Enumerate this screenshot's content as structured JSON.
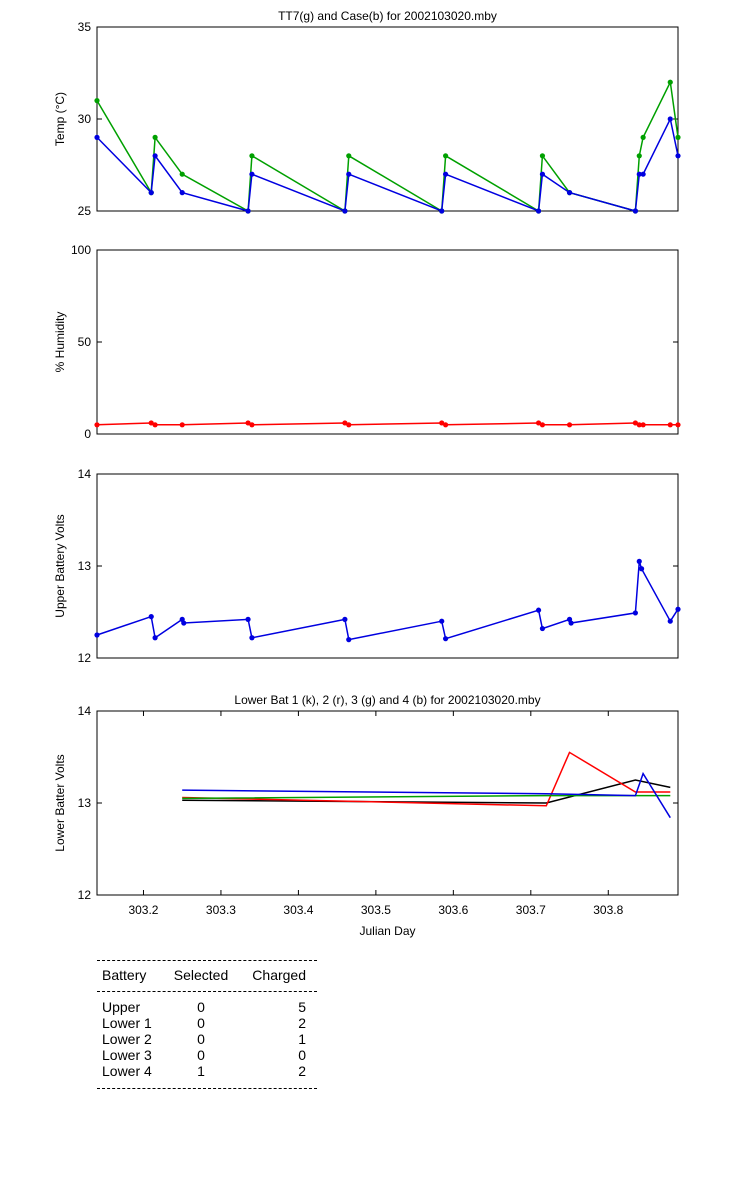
{
  "chart_data": [
    {
      "type": "line",
      "title": "TT7(g) and Case(b) for 2002103020.mby",
      "ylabel": "Temp  (°C)",
      "xlim": [
        303.14,
        303.89
      ],
      "ylim": [
        25,
        35
      ],
      "yticks": [
        25,
        30,
        35
      ],
      "markers": true,
      "series": [
        {
          "color": "#00a000",
          "x": [
            303.14,
            303.21,
            303.215,
            303.25,
            303.335,
            303.34,
            303.46,
            303.465,
            303.585,
            303.59,
            303.71,
            303.715,
            303.75,
            303.835,
            303.84,
            303.845,
            303.88,
            303.89
          ],
          "y": [
            31,
            26,
            29,
            27,
            25,
            28,
            25,
            28,
            25,
            28,
            25,
            28,
            26,
            25,
            28,
            29,
            32,
            29
          ]
        },
        {
          "color": "#0000e0",
          "x": [
            303.14,
            303.21,
            303.215,
            303.25,
            303.335,
            303.34,
            303.46,
            303.465,
            303.585,
            303.59,
            303.71,
            303.715,
            303.75,
            303.835,
            303.84,
            303.845,
            303.88,
            303.89
          ],
          "y": [
            29,
            26,
            28,
            26,
            25,
            27,
            25,
            27,
            25,
            27,
            25,
            27,
            26,
            25,
            27,
            27,
            30,
            28
          ]
        }
      ]
    },
    {
      "type": "line",
      "ylabel": "% Humidity",
      "xlim": [
        303.14,
        303.89
      ],
      "ylim": [
        0,
        100
      ],
      "yticks": [
        0,
        50,
        100
      ],
      "markers": true,
      "series": [
        {
          "color": "#ff0000",
          "x": [
            303.14,
            303.21,
            303.215,
            303.25,
            303.335,
            303.34,
            303.46,
            303.465,
            303.585,
            303.59,
            303.71,
            303.715,
            303.75,
            303.835,
            303.84,
            303.845,
            303.88,
            303.89
          ],
          "y": [
            5,
            6,
            5,
            5,
            6,
            5,
            6,
            5,
            6,
            5,
            6,
            5,
            5,
            6,
            5,
            5,
            5,
            5
          ]
        }
      ]
    },
    {
      "type": "line",
      "ylabel": "Upper Battery Volts",
      "xlim": [
        303.14,
        303.89
      ],
      "ylim": [
        12,
        14
      ],
      "yticks": [
        12,
        13,
        14
      ],
      "markers": true,
      "series": [
        {
          "color": "#0000e0",
          "x": [
            303.14,
            303.21,
            303.215,
            303.25,
            303.252,
            303.335,
            303.34,
            303.46,
            303.465,
            303.585,
            303.59,
            303.71,
            303.715,
            303.75,
            303.752,
            303.835,
            303.84,
            303.843,
            303.88,
            303.89
          ],
          "y": [
            12.25,
            12.45,
            12.22,
            12.42,
            12.38,
            12.42,
            12.22,
            12.42,
            12.2,
            12.4,
            12.21,
            12.52,
            12.32,
            12.42,
            12.38,
            12.49,
            13.05,
            12.97,
            12.4,
            12.53
          ]
        }
      ]
    },
    {
      "type": "line",
      "title": "Lower Bat 1 (k), 2 (r), 3 (g) and 4 (b) for 2002103020.mby",
      "xlabel": "Julian Day",
      "ylabel": "Lower Batter Volts",
      "xlim": [
        303.14,
        303.89
      ],
      "ylim": [
        12,
        14
      ],
      "yticks": [
        12,
        13,
        14
      ],
      "xticks": [
        303.2,
        303.3,
        303.4,
        303.5,
        303.6,
        303.7,
        303.8
      ],
      "markers": false,
      "series": [
        {
          "color": "#000000",
          "x": [
            303.25,
            303.72,
            303.835,
            303.88
          ],
          "y": [
            13.03,
            13.0,
            13.25,
            13.17
          ]
        },
        {
          "color": "#ff0000",
          "x": [
            303.25,
            303.72,
            303.75,
            303.835,
            303.88
          ],
          "y": [
            13.06,
            12.97,
            13.55,
            13.12,
            13.12
          ]
        },
        {
          "color": "#00a000",
          "x": [
            303.25,
            303.72,
            303.835,
            303.88
          ],
          "y": [
            13.05,
            13.08,
            13.08,
            13.08
          ]
        },
        {
          "color": "#0000e0",
          "x": [
            303.25,
            303.72,
            303.835,
            303.845,
            303.88
          ],
          "y": [
            13.14,
            13.1,
            13.08,
            13.32,
            12.84
          ]
        }
      ]
    }
  ],
  "summary": {
    "headers": [
      "Battery",
      "Selected",
      "Charged"
    ],
    "rows": [
      {
        "battery": "Upper",
        "selected": "0",
        "charged": "5"
      },
      {
        "battery": "Lower 1",
        "selected": "0",
        "charged": "2"
      },
      {
        "battery": "Lower 2",
        "selected": "0",
        "charged": "1"
      },
      {
        "battery": "Lower 3",
        "selected": "0",
        "charged": "0"
      },
      {
        "battery": "Lower 4",
        "selected": "1",
        "charged": "2"
      }
    ]
  }
}
